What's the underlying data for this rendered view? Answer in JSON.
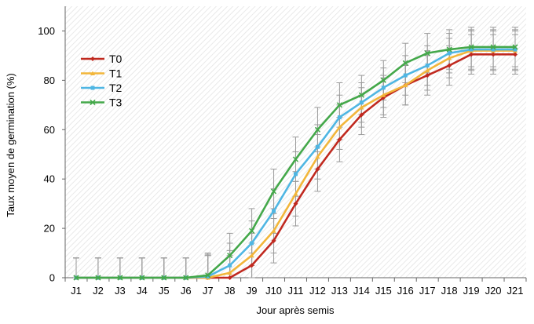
{
  "chart_data": {
    "type": "line",
    "title": "",
    "xlabel": "Jour après semis",
    "ylabel": "Taux moyen de germination (%)",
    "ylim": [
      0,
      110
    ],
    "yticks": [
      0,
      20,
      40,
      60,
      80,
      100
    ],
    "grid": false,
    "background": "hatched",
    "legend_position": "upper-left",
    "categories": [
      "J1",
      "J2",
      "J3",
      "J4",
      "J5",
      "J6",
      "J7",
      "J8",
      "J9",
      "J10",
      "J11",
      "J12",
      "J13",
      "J14",
      "J15",
      "J16",
      "J17",
      "J18",
      "J19",
      "J20",
      "J21"
    ],
    "series": [
      {
        "name": "T0",
        "color": "#c0291f",
        "marker": "diamond",
        "values": [
          0,
          0,
          0,
          0,
          0,
          0,
          0,
          0,
          5,
          15,
          30,
          44,
          56,
          66,
          73,
          78,
          82,
          86,
          90.5,
          90.5,
          90.5
        ],
        "errors": [
          8,
          8,
          8,
          8,
          8,
          8,
          9,
          9,
          9,
          9,
          9,
          9,
          9,
          8,
          8,
          8,
          8,
          8,
          8,
          8,
          8
        ]
      },
      {
        "name": "T1",
        "color": "#f2b63a",
        "marker": "triangle",
        "values": [
          0,
          0,
          0,
          0,
          0,
          0,
          0,
          2,
          9,
          19,
          34,
          49,
          61,
          69,
          74,
          78,
          84,
          89,
          92,
          92,
          92
        ],
        "errors": [
          8,
          8,
          8,
          8,
          8,
          8,
          9,
          9,
          9,
          9,
          9,
          9,
          9,
          8,
          8,
          8,
          8,
          8,
          8,
          8,
          8
        ]
      },
      {
        "name": "T2",
        "color": "#4fb6e3",
        "marker": "square",
        "values": [
          0,
          0,
          0,
          0,
          0,
          0,
          0.5,
          5,
          14,
          27,
          42,
          53,
          65,
          71,
          77,
          82,
          86,
          91,
          92.5,
          92.5,
          92.5
        ],
        "errors": [
          8,
          8,
          8,
          8,
          8,
          8,
          9,
          9,
          9,
          9,
          9,
          9,
          9,
          8,
          8,
          8,
          8,
          8,
          8,
          8,
          8
        ]
      },
      {
        "name": "T3",
        "color": "#44a84a",
        "marker": "x",
        "values": [
          0,
          0,
          0,
          0,
          0,
          0,
          1,
          9,
          19,
          35,
          48,
          60,
          70,
          74,
          80,
          87,
          91,
          92.5,
          93.5,
          93.5,
          93.5
        ],
        "errors": [
          8,
          8,
          8,
          8,
          8,
          8,
          9,
          9,
          9,
          9,
          9,
          9,
          9,
          8,
          8,
          8,
          8,
          8,
          8,
          8,
          8
        ]
      }
    ]
  }
}
